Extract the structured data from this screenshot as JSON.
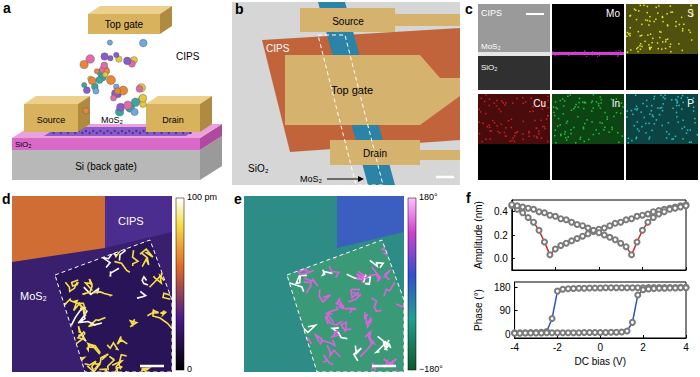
{
  "figure": {
    "a": {
      "letter": "a",
      "top_gate": "Top gate",
      "cips": "CIPS",
      "source": "Source",
      "drain": "Drain",
      "mos2": "MoS₂",
      "sio2": "SiO₂",
      "si": "Si (back gate)"
    },
    "b": {
      "letter": "b",
      "source": "Source",
      "top_gate": "Top gate",
      "cips": "CIPS",
      "drain": "Drain",
      "sio2": "SiO₂",
      "mos2": "MoS₂"
    },
    "c": {
      "letter": "c",
      "maps": [
        {
          "label": "CIPS",
          "layers": [
            "MoS₂",
            "SiO₂"
          ]
        },
        {
          "label": "Mo",
          "color": "#d63cd6"
        },
        {
          "label": "S",
          "color": "#e6e62a"
        },
        {
          "label": "Cu",
          "color": "#d11f1f"
        },
        {
          "label": "In",
          "color": "#22c43a"
        },
        {
          "label": "P",
          "color": "#22c4c4"
        }
      ]
    },
    "d": {
      "letter": "d",
      "cips": "CIPS",
      "mos2": "MoS₂",
      "colorbar": {
        "range": [
          0,
          100
        ],
        "ticks": [
          {
            "value": 100,
            "label": "100 pm"
          },
          0
        ]
      }
    },
    "e": {
      "letter": "e",
      "colorbar": {
        "range": [
          -180,
          180
        ],
        "ticks": [
          {
            "value": 180,
            "label": "180°"
          },
          {
            "value": -180,
            "label": "−180°"
          }
        ]
      }
    },
    "f": {
      "letter": "f"
    }
  },
  "chart_data": [
    {
      "type": "line",
      "ylabel": "Amplitude (nm)",
      "x": [
        -4,
        -3.75,
        -3.5,
        -3.25,
        -3,
        -2.75,
        -2.5,
        -2.25,
        -2,
        -1.75,
        -1.5,
        -1.25,
        -1,
        -0.75,
        -0.5,
        -0.25,
        0,
        0.25,
        0.5,
        0.75,
        1,
        1.25,
        1.5,
        1.75,
        2,
        2.25,
        2.5,
        2.75,
        3,
        3.25,
        3.5,
        3.75,
        4
      ],
      "xlim": [
        -4,
        4
      ],
      "xticks": [
        -4,
        -2,
        0,
        2,
        4
      ],
      "ylim": [
        -0.1,
        0.5
      ],
      "yticks": [
        {
          "value": 0,
          "label": "0.0"
        },
        {
          "value": 0.2,
          "label": "0.2"
        },
        {
          "value": 0.4,
          "label": "0.4"
        }
      ],
      "tick_labels": "y",
      "grid": false,
      "marker": "circle",
      "series": [
        {
          "color": "#d62728",
          "values": [
            0.45,
            0.42,
            0.39,
            0.35,
            0.31,
            0.24,
            0.14,
            0.03,
            0.08,
            0.11,
            0.13,
            0.15,
            0.17,
            0.19,
            0.21,
            0.23,
            0.25,
            0.26,
            0.28,
            0.3,
            0.31,
            0.33,
            0.34,
            0.36,
            0.37,
            0.38,
            0.4,
            0.41,
            0.42,
            0.43,
            0.44,
            0.45,
            0.46
          ]
        },
        {
          "color": "#d62728",
          "values": [
            0.46,
            0.45,
            0.44,
            0.43,
            0.42,
            0.4,
            0.39,
            0.37,
            0.36,
            0.34,
            0.33,
            0.31,
            0.29,
            0.28,
            0.26,
            0.24,
            0.22,
            0.2,
            0.18,
            0.16,
            0.13,
            0.1,
            0.03,
            0.14,
            0.24,
            0.31,
            0.35,
            0.38,
            0.4,
            0.42,
            0.43,
            0.44,
            0.45
          ]
        }
      ]
    },
    {
      "type": "line",
      "xlabel": "DC bias (V)",
      "ylabel": "Phase (°)",
      "x": [
        -4,
        -3.75,
        -3.5,
        -3.25,
        -3,
        -2.75,
        -2.5,
        -2.25,
        -2,
        -1.75,
        -1.5,
        -1.25,
        -1,
        -0.75,
        -0.5,
        -0.25,
        0,
        0.25,
        0.5,
        0.75,
        1,
        1.25,
        1.5,
        1.75,
        2,
        2.25,
        2.5,
        2.75,
        3,
        3.25,
        3.5,
        3.75,
        4
      ],
      "xlim": [
        -4,
        4
      ],
      "xticks": [
        -4,
        -2,
        0,
        2,
        4
      ],
      "ylim": [
        -15,
        200
      ],
      "yticks": [
        0,
        90,
        180
      ],
      "grid": false,
      "marker": "circle",
      "series": [
        {
          "color": "#2f4fc8",
          "values": [
            5,
            5,
            5,
            6,
            6,
            7,
            10,
            60,
            165,
            172,
            174,
            175,
            176,
            176,
            177,
            177,
            177,
            178,
            178,
            178,
            178,
            178,
            178,
            178,
            178,
            179,
            179,
            179,
            179,
            179,
            179,
            180,
            180
          ]
        },
        {
          "color": "#2f4fc8",
          "values": [
            3,
            3,
            4,
            4,
            4,
            4,
            5,
            5,
            5,
            5,
            5,
            5,
            5,
            6,
            6,
            6,
            6,
            6,
            7,
            7,
            8,
            12,
            45,
            150,
            170,
            173,
            175,
            176,
            176,
            177,
            177,
            178,
            178
          ]
        }
      ]
    }
  ]
}
